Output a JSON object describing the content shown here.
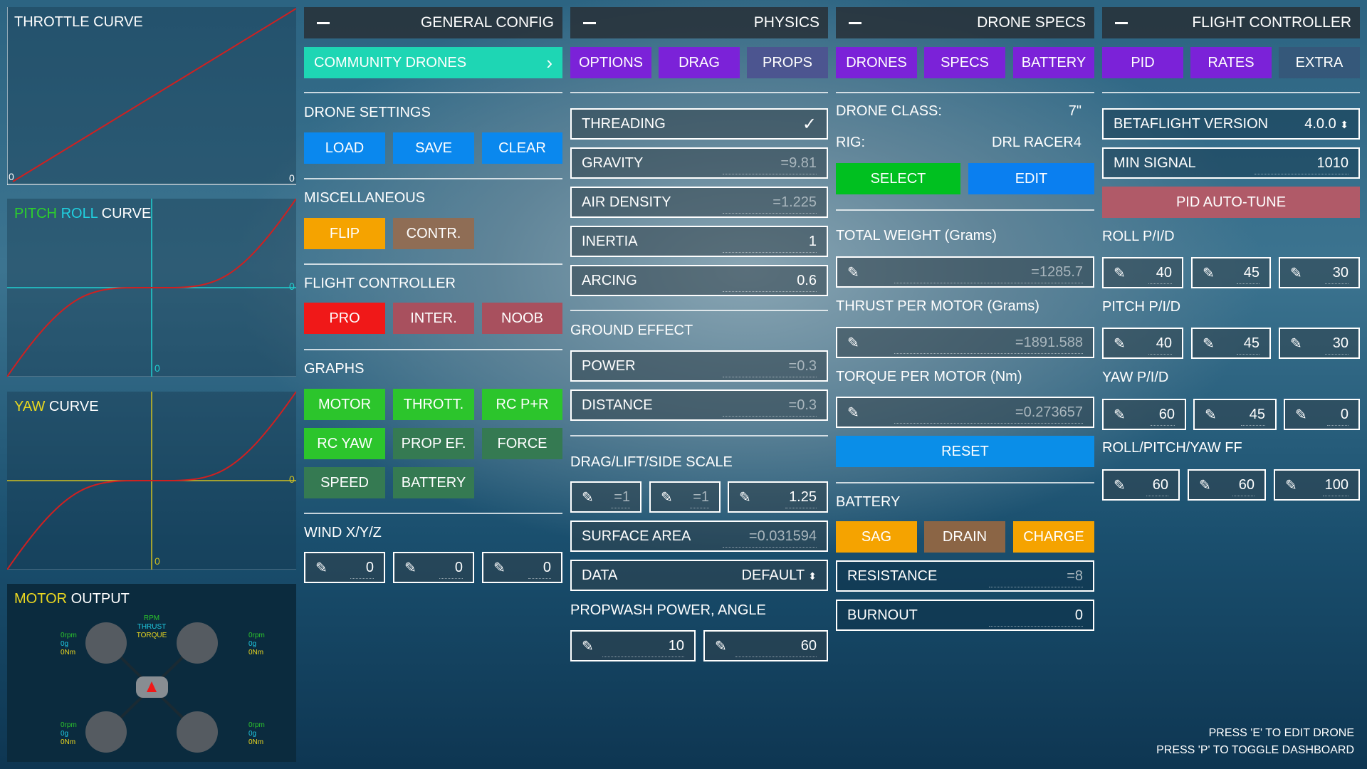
{
  "graphs": {
    "throttle": {
      "title": "THROTTLE CURVE",
      "x0": "0",
      "y0": "0"
    },
    "pitch_roll": {
      "title_a": "PITCH",
      "title_b": "ROLL",
      "title_c": "CURVE",
      "x0": "0",
      "y0": "0"
    },
    "yaw": {
      "title_a": "YAW",
      "title_b": "CURVE",
      "x0": "0",
      "y0": "0"
    },
    "motor_output": {
      "title_a": "MOTOR",
      "title_b": "OUTPUT",
      "legend": [
        "RPM",
        "THRUST",
        "TORQUE"
      ],
      "motors": [
        {
          "rpm": "0rpm",
          "thrust": "0g",
          "torque": "0Nm"
        },
        {
          "rpm": "0rpm",
          "thrust": "0g",
          "torque": "0Nm"
        },
        {
          "rpm": "0rpm",
          "thrust": "0g",
          "torque": "0Nm"
        },
        {
          "rpm": "0rpm",
          "thrust": "0g",
          "torque": "0Nm"
        }
      ]
    }
  },
  "colors": {
    "curve": "#d02020",
    "pitch_roll_axis": "#20d0d0",
    "yaw_axis": "#d0c020",
    "teal": "#1ed6b4",
    "purple": "#7b22d8",
    "green": "#2cc52c",
    "blue": "#0a88ee",
    "orange": "#f5a300",
    "red": "#f01818"
  },
  "general_config": {
    "title": "GENERAL CONFIG",
    "community_drones": "COMMUNITY DRONES",
    "drone_settings": {
      "label": "DRONE SETTINGS",
      "load": "LOAD",
      "save": "SAVE",
      "clear": "CLEAR"
    },
    "misc": {
      "label": "MISCELLANEOUS",
      "flip": "FLIP",
      "contr": "CONTR."
    },
    "flight_controller": {
      "label": "FLIGHT CONTROLLER",
      "pro": "PRO",
      "inter": "INTER.",
      "noob": "NOOB"
    },
    "graphs": {
      "label": "GRAPHS",
      "buttons": [
        "MOTOR",
        "THROTT.",
        "RC P+R",
        "RC YAW",
        "PROP EF.",
        "FORCE",
        "SPEED",
        "BATTERY"
      ]
    },
    "wind": {
      "label": "WIND X/Y/Z",
      "values": [
        "0",
        "0",
        "0"
      ]
    }
  },
  "physics": {
    "title": "PHYSICS",
    "tabs": [
      "OPTIONS",
      "DRAG",
      "PROPS"
    ],
    "threading": "THREADING",
    "gravity": {
      "label": "GRAVITY",
      "value": "=9.81"
    },
    "air_density": {
      "label": "AIR DENSITY",
      "value": "=1.225"
    },
    "inertia": {
      "label": "INERTIA",
      "value": "1"
    },
    "arcing": {
      "label": "ARCING",
      "value": "0.6"
    },
    "ground_effect": {
      "label": "GROUND EFFECT",
      "power": {
        "label": "POWER",
        "value": "=0.3"
      },
      "distance": {
        "label": "DISTANCE",
        "value": "=0.3"
      }
    },
    "scale": {
      "label": "DRAG/LIFT/SIDE SCALE",
      "values": [
        "=1",
        "=1",
        "1.25"
      ]
    },
    "surface_area": {
      "label": "SURFACE AREA",
      "value": "=0.031594"
    },
    "data": {
      "label": "DATA",
      "value": "DEFAULT"
    },
    "propwash": {
      "label": "PROPWASH POWER, ANGLE",
      "values": [
        "10",
        "60"
      ]
    }
  },
  "drone_specs": {
    "title": "DRONE SPECS",
    "tabs": [
      "DRONES",
      "SPECS",
      "BATTERY"
    ],
    "drone_class": {
      "label": "DRONE CLASS:",
      "value": "7\""
    },
    "rig": {
      "label": "RIG:",
      "value": "DRL RACER4"
    },
    "select": "SELECT",
    "edit": "EDIT",
    "total_weight": {
      "label": "TOTAL WEIGHT (Grams)",
      "value": "=1285.7"
    },
    "thrust": {
      "label": "THRUST PER MOTOR (Grams)",
      "value": "=1891.588"
    },
    "torque": {
      "label": "TORQUE PER MOTOR (Nm)",
      "value": "=0.273657"
    },
    "reset": "RESET",
    "battery": {
      "label": "BATTERY",
      "sag": "SAG",
      "drain": "DRAIN",
      "charge": "CHARGE",
      "resistance": {
        "label": "RESISTANCE",
        "value": "=8"
      },
      "burnout": {
        "label": "BURNOUT",
        "value": "0"
      }
    }
  },
  "flight_controller": {
    "title": "FLIGHT CONTROLLER",
    "tabs": [
      "PID",
      "RATES",
      "EXTRA"
    ],
    "betaflight": {
      "label": "BETAFLIGHT VERSION",
      "value": "4.0.0"
    },
    "min_signal": {
      "label": "MIN SIGNAL",
      "value": "1010"
    },
    "autotune": "PID AUTO-TUNE",
    "roll": {
      "label": "ROLL P/I/D",
      "values": [
        "40",
        "45",
        "30"
      ]
    },
    "pitch": {
      "label": "PITCH P/I/D",
      "values": [
        "40",
        "45",
        "30"
      ]
    },
    "yaw": {
      "label": "YAW P/I/D",
      "values": [
        "60",
        "45",
        "0"
      ]
    },
    "ff": {
      "label": "ROLL/PITCH/YAW FF",
      "values": [
        "60",
        "60",
        "100"
      ]
    }
  },
  "footer": {
    "line1": "PRESS 'E' TO EDIT DRONE",
    "line2": "PRESS 'P' TO TOGGLE DASHBOARD"
  }
}
